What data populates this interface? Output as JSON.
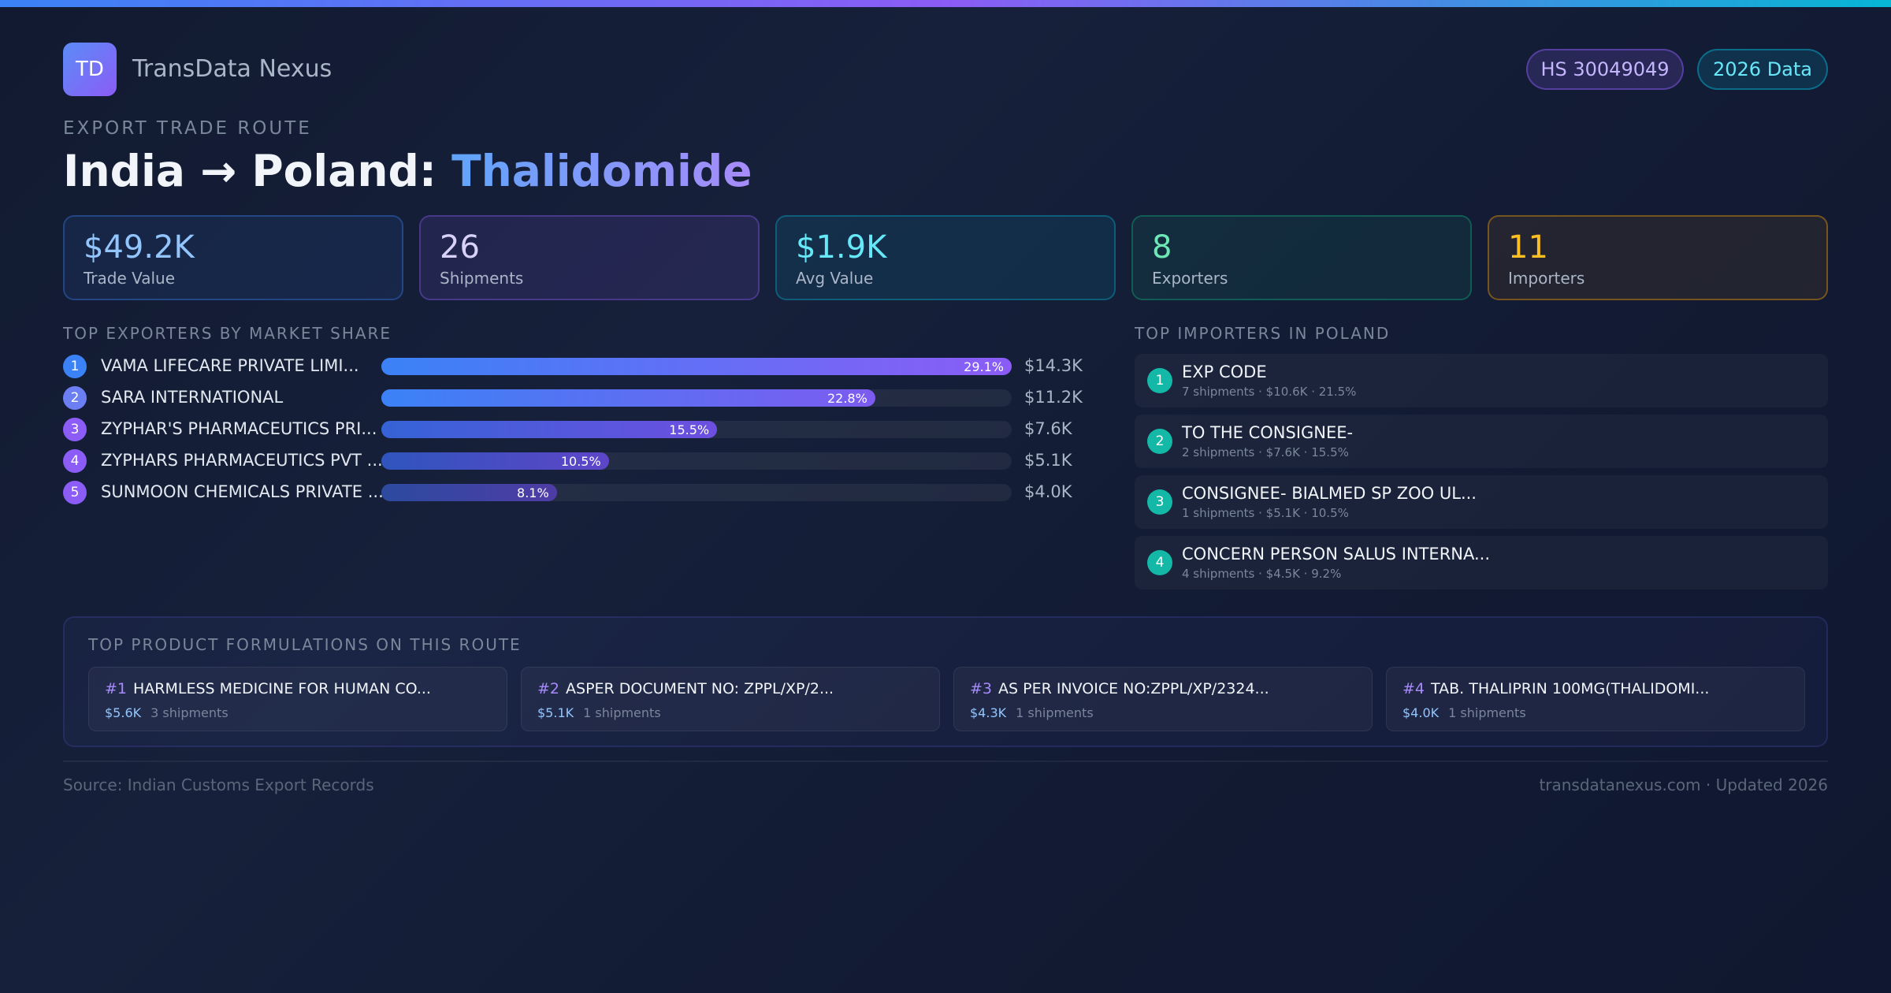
{
  "brand": {
    "logo_text": "TD",
    "name": "TransData Nexus"
  },
  "badges": {
    "hs_code": "HS 30049049",
    "data_year": "2026 Data"
  },
  "header": {
    "eyebrow": "EXPORT TRADE ROUTE",
    "route": "India → Poland:",
    "product": "Thalidomide"
  },
  "stats": [
    {
      "value": "$49.2K",
      "label": "Trade Value"
    },
    {
      "value": "26",
      "label": "Shipments"
    },
    {
      "value": "$1.9K",
      "label": "Avg Value"
    },
    {
      "value": "8",
      "label": "Exporters"
    },
    {
      "value": "11",
      "label": "Importers"
    }
  ],
  "exporters": {
    "title": "TOP EXPORTERS BY MARKET SHARE",
    "items": [
      {
        "rank": "1",
        "name": "VAMA LIFECARE PRIVATE LIMI...",
        "share": 29.1,
        "share_label": "29.1%",
        "value": "$14.3K"
      },
      {
        "rank": "2",
        "name": "SARA INTERNATIONAL",
        "share": 22.8,
        "share_label": "22.8%",
        "value": "$11.2K"
      },
      {
        "rank": "3",
        "name": "ZYPHAR'S PHARMACEUTICS PRI...",
        "share": 15.5,
        "share_label": "15.5%",
        "value": "$7.6K"
      },
      {
        "rank": "4",
        "name": "ZYPHARS PHARMACEUTICS PVT ...",
        "share": 10.5,
        "share_label": "10.5%",
        "value": "$5.1K"
      },
      {
        "rank": "5",
        "name": "SUNMOON CHEMICALS PRIVATE ...",
        "share": 8.1,
        "share_label": "8.1%",
        "value": "$4.0K"
      }
    ]
  },
  "importers": {
    "title": "TOP IMPORTERS IN POLAND",
    "items": [
      {
        "rank": "1",
        "name": "EXP CODE",
        "meta": "7 shipments · $10.6K · 21.5%"
      },
      {
        "rank": "2",
        "name": "TO THE CONSIGNEE-",
        "meta": "2 shipments · $7.6K · 15.5%"
      },
      {
        "rank": "3",
        "name": "CONSIGNEE- BIALMED SP ZOO UL...",
        "meta": "1 shipments · $5.1K · 10.5%"
      },
      {
        "rank": "4",
        "name": "CONCERN PERSON SALUS INTERNA...",
        "meta": "4 shipments · $4.5K · 9.2%"
      }
    ]
  },
  "formulations": {
    "title": "TOP PRODUCT FORMULATIONS ON THIS ROUTE",
    "items": [
      {
        "num": "#1",
        "name": "HARMLESS MEDICINE FOR HUMAN CO...",
        "value": "$5.6K",
        "shipments": "3 shipments"
      },
      {
        "num": "#2",
        "name": "ASPER DOCUMENT NO: ZPPL/XP/2...",
        "value": "$5.1K",
        "shipments": "1 shipments"
      },
      {
        "num": "#3",
        "name": "AS PER INVOICE NO:ZPPL/XP/2324...",
        "value": "$4.3K",
        "shipments": "1 shipments"
      },
      {
        "num": "#4",
        "name": "TAB. THALIPRIN 100MG(THALIDOMI...",
        "value": "$4.0K",
        "shipments": "1 shipments"
      }
    ]
  },
  "footer": {
    "source": "Source: Indian Customs Export Records",
    "site": "transdatanexus.com · Updated 2026"
  },
  "colors": {
    "accent_blue": "#3b82f6",
    "accent_purple": "#8b5cf6",
    "accent_cyan": "#06b6d4",
    "accent_green": "#10b981",
    "accent_amber": "#f59e0b",
    "importer_teal": "#14b8a6"
  }
}
